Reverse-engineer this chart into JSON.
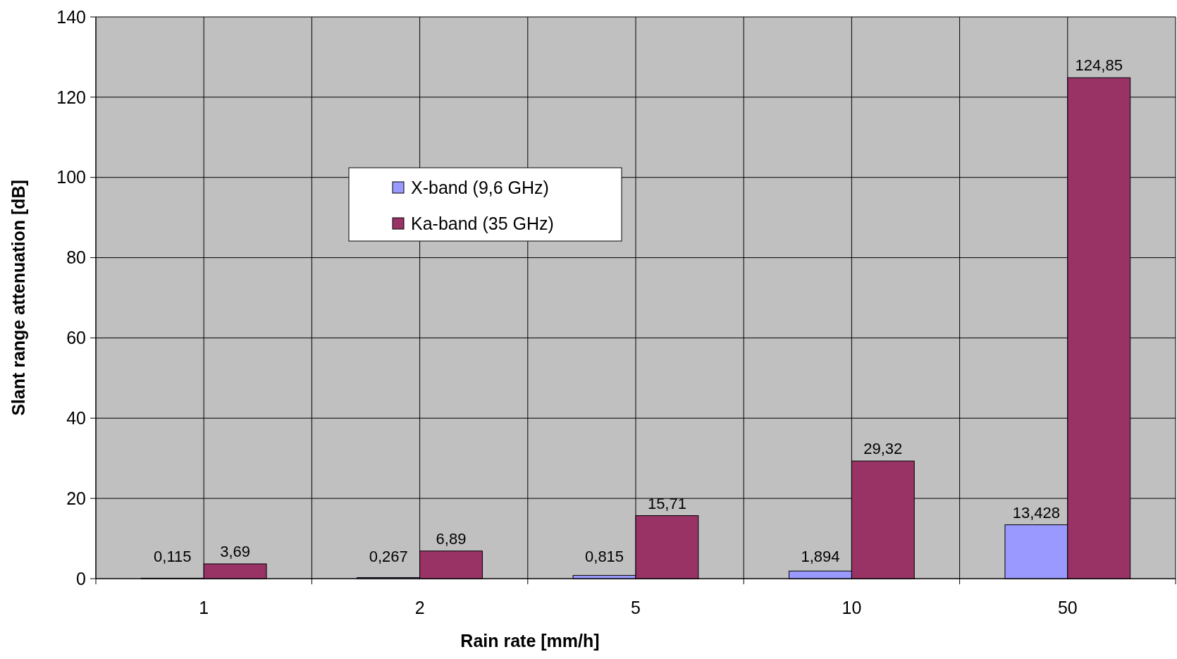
{
  "chart_data": {
    "type": "bar",
    "xlabel": "Rain rate [mm/h]",
    "ylabel": "Slant range attenuation [dB]",
    "categories": [
      "1",
      "2",
      "5",
      "10",
      "50"
    ],
    "series": [
      {
        "name": "X-band (9,6 GHz)",
        "color": "#9999ff",
        "values": [
          0.115,
          0.267,
          0.815,
          1.894,
          13.428
        ],
        "value_labels": [
          "0,115",
          "0,267",
          "0,815",
          "1,894",
          "13,428"
        ]
      },
      {
        "name": "Ka-band (35 GHz)",
        "color": "#993366",
        "values": [
          3.69,
          6.89,
          15.71,
          29.32,
          124.85
        ],
        "value_labels": [
          "3,69",
          "6,89",
          "15,71",
          "29,32",
          "124,85"
        ]
      }
    ],
    "ylim": [
      0,
      140
    ],
    "yticks": [
      0,
      20,
      40,
      60,
      80,
      100,
      120,
      140
    ],
    "grid": true,
    "legend": "top left"
  }
}
